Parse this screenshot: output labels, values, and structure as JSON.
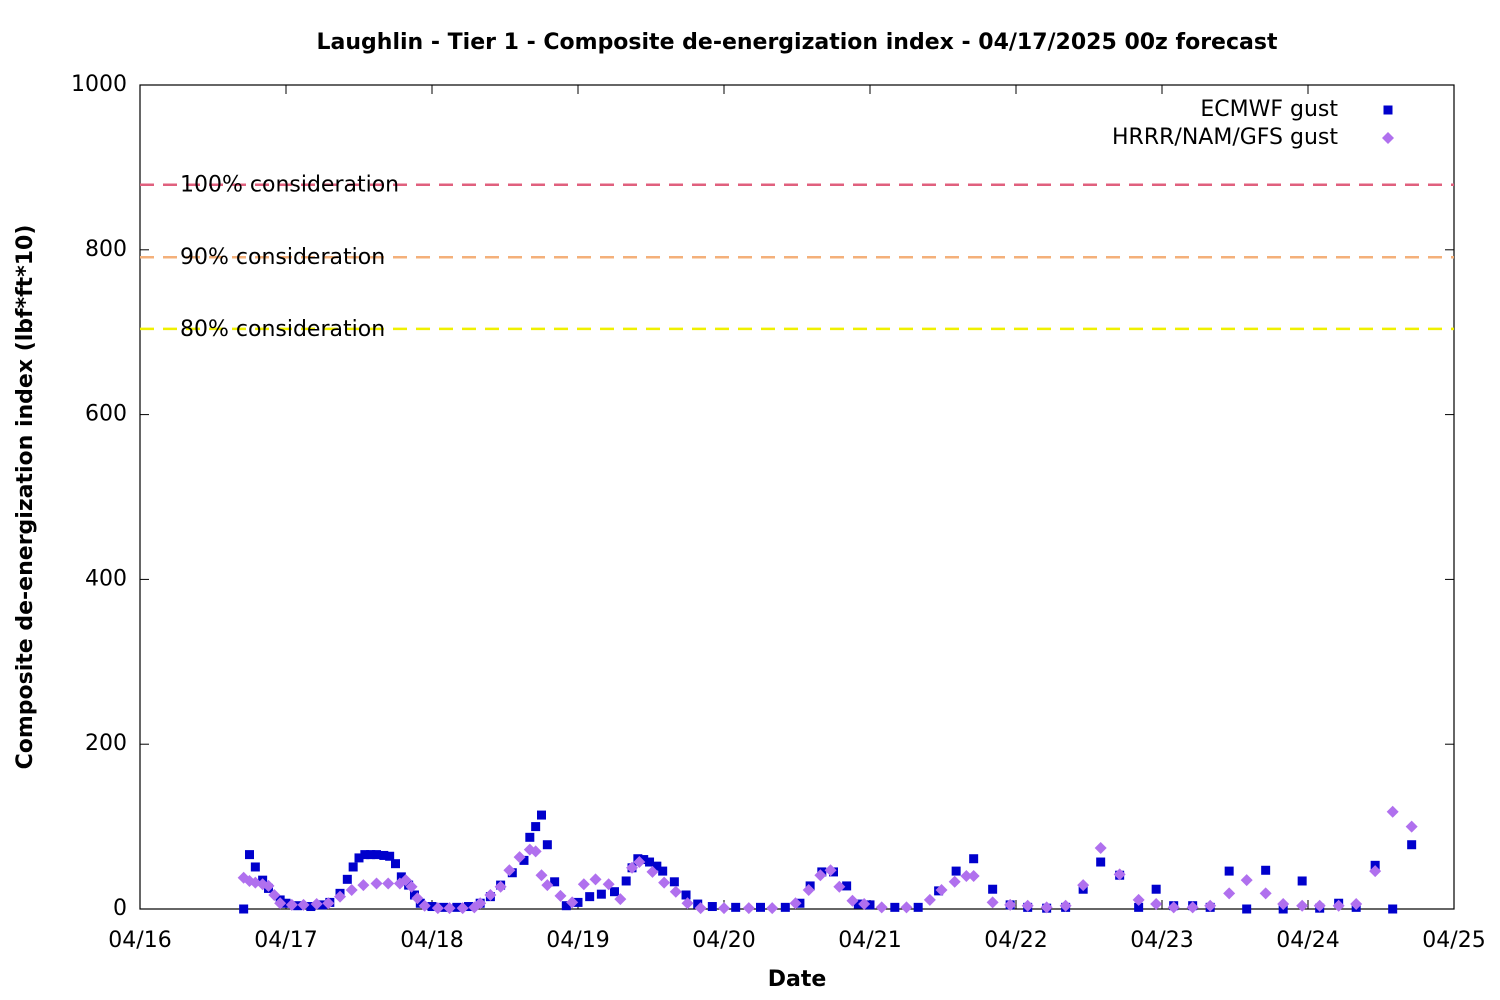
{
  "chart_data": {
    "type": "scatter",
    "title": "Laughlin - Tier 1 - Composite de-energization index - 04/17/2025 00z forecast",
    "x_label": "Date",
    "y_label": "Composite de-energization index (lbf*ft*10)",
    "xlim": [
      0,
      9
    ],
    "xticks": [
      {
        "value": 0,
        "label": "04/16"
      },
      {
        "value": 1,
        "label": "04/17"
      },
      {
        "value": 2,
        "label": "04/18"
      },
      {
        "value": 3,
        "label": "04/19"
      },
      {
        "value": 4,
        "label": "04/20"
      },
      {
        "value": 5,
        "label": "04/21"
      },
      {
        "value": 6,
        "label": "04/22"
      },
      {
        "value": 7,
        "label": "04/23"
      },
      {
        "value": 8,
        "label": "04/24"
      },
      {
        "value": 9,
        "label": "04/25"
      }
    ],
    "ylim": [
      0,
      1000
    ],
    "yticks": [
      0,
      200,
      400,
      600,
      800,
      1000
    ],
    "legend": "top-right",
    "reference_lines": [
      {
        "label": "100% consideration",
        "value": 879,
        "color": "#e0607e"
      },
      {
        "label": "90% consideration",
        "value": 791,
        "color": "#f4b07a"
      },
      {
        "label": "80% consideration",
        "value": 704,
        "color": "#f0f000"
      }
    ],
    "series": [
      {
        "name": "ECMWF gust",
        "color": "#0000cc",
        "marker": "square",
        "x": [
          0.71,
          0.75,
          0.79,
          0.84,
          0.88,
          0.96,
          1.0,
          1.08,
          1.17,
          1.25,
          1.3,
          1.37,
          1.42,
          1.46,
          1.5,
          1.54,
          1.58,
          1.62,
          1.67,
          1.71,
          1.75,
          1.79,
          1.84,
          1.88,
          1.92,
          2.0,
          2.08,
          2.17,
          2.25,
          2.33,
          2.4,
          2.47,
          2.55,
          2.63,
          2.67,
          2.71,
          2.75,
          2.79,
          2.84,
          2.92,
          3.0,
          3.08,
          3.16,
          3.25,
          3.33,
          3.37,
          3.41,
          3.45,
          3.49,
          3.54,
          3.58,
          3.66,
          3.74,
          3.82,
          3.92,
          4.08,
          4.25,
          4.42,
          4.52,
          4.59,
          4.67,
          4.75,
          4.84,
          4.92,
          5.0,
          5.17,
          5.33,
          5.47,
          5.59,
          5.71,
          5.84,
          5.96,
          6.08,
          6.21,
          6.34,
          6.46,
          6.58,
          6.71,
          6.84,
          6.96,
          7.08,
          7.21,
          7.33,
          7.46,
          7.58,
          7.71,
          7.83,
          7.96,
          8.08,
          8.21,
          8.33,
          8.46,
          8.58,
          8.71
        ],
        "values": [
          0,
          66,
          51,
          35,
          25,
          11,
          7,
          4,
          3,
          5,
          8,
          19,
          36,
          51,
          62,
          66,
          66,
          66,
          65,
          64,
          55,
          39,
          29,
          17,
          7,
          3,
          2,
          2,
          3,
          7,
          15,
          29,
          44,
          59,
          87,
          100,
          114,
          78,
          33,
          4,
          8,
          15,
          18,
          21,
          34,
          50,
          61,
          60,
          57,
          52,
          46,
          33,
          17,
          6,
          3,
          2,
          2,
          2,
          7,
          28,
          45,
          45,
          28,
          6,
          5,
          2,
          2,
          22,
          46,
          61,
          24,
          5,
          2,
          1,
          2,
          24,
          57,
          41,
          2,
          24,
          4,
          4,
          2,
          46,
          0,
          47,
          0,
          34,
          1,
          7,
          2,
          53,
          0,
          78
        ]
      },
      {
        "name": "HRRR/NAM/GFS gust",
        "color": "#b070ee",
        "marker": "diamond",
        "x": [
          0.71,
          0.75,
          0.79,
          0.84,
          0.88,
          0.92,
          0.96,
          1.04,
          1.12,
          1.21,
          1.29,
          1.37,
          1.45,
          1.53,
          1.62,
          1.7,
          1.78,
          1.82,
          1.86,
          1.9,
          1.95,
          2.04,
          2.12,
          2.21,
          2.29,
          2.33,
          2.4,
          2.47,
          2.53,
          2.6,
          2.67,
          2.71,
          2.75,
          2.79,
          2.88,
          2.96,
          3.04,
          3.12,
          3.21,
          3.29,
          3.37,
          3.42,
          3.51,
          3.59,
          3.67,
          3.75,
          3.84,
          4.0,
          4.17,
          4.33,
          4.49,
          4.58,
          4.66,
          4.73,
          4.79,
          4.88,
          4.96,
          5.08,
          5.25,
          5.41,
          5.49,
          5.58,
          5.66,
          5.71,
          5.84,
          5.96,
          6.08,
          6.21,
          6.34,
          6.46,
          6.58,
          6.71,
          6.84,
          6.96,
          7.08,
          7.21,
          7.33,
          7.46,
          7.58,
          7.71,
          7.83,
          7.96,
          8.08,
          8.21,
          8.33,
          8.46,
          8.58,
          8.71
        ],
        "values": [
          38,
          34,
          32,
          30,
          28,
          17,
          7,
          5,
          5,
          6,
          7,
          15,
          23,
          29,
          31,
          31,
          31,
          35,
          27,
          13,
          4,
          1,
          1,
          1,
          2,
          7,
          17,
          27,
          47,
          63,
          72,
          70,
          41,
          29,
          16,
          8,
          30,
          36,
          30,
          12,
          50,
          57,
          45,
          32,
          21,
          7,
          1,
          1,
          1,
          1,
          7,
          23,
          41,
          47,
          27,
          10,
          6,
          2,
          2,
          11,
          23,
          33,
          40,
          40,
          8,
          5,
          4,
          2,
          4,
          29,
          74,
          42,
          11,
          6,
          2,
          2,
          4,
          19,
          35,
          19,
          6,
          4,
          4,
          4,
          6,
          46,
          118,
          100
        ]
      }
    ]
  }
}
